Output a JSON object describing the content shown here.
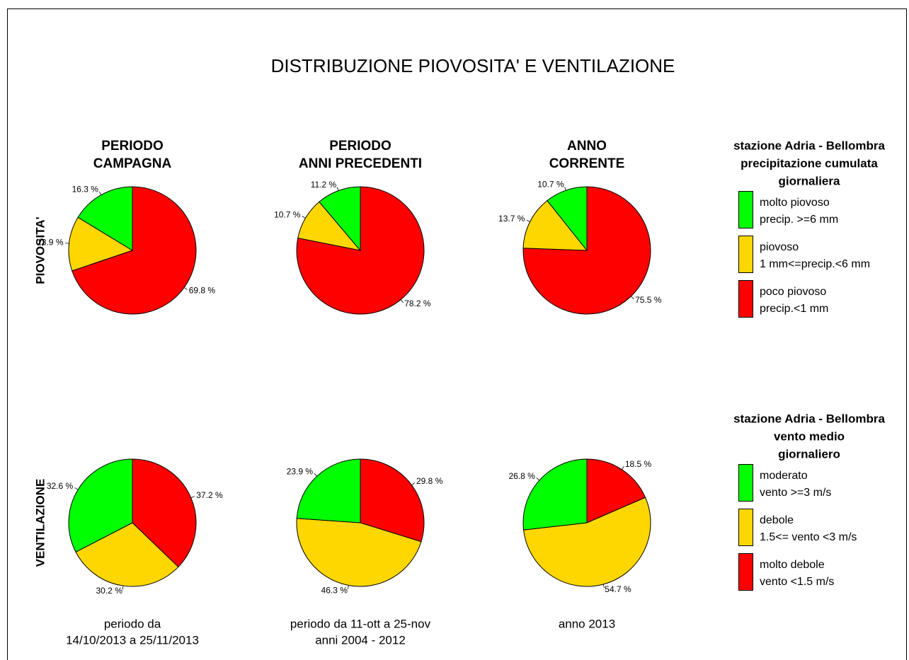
{
  "title": "DISTRIBUZIONE PIOVOSITA' E VENTILAZIONE",
  "columns": [
    {
      "title": [
        "PERIODO",
        "CAMPAGNA"
      ],
      "footer": [
        "periodo da",
        "14/10/2013  a   25/11/2013"
      ]
    },
    {
      "title": [
        "PERIODO",
        "ANNI PRECEDENTI"
      ],
      "footer": [
        "periodo da  11-ott  a  25-nov",
        "anni 2004 - 2012"
      ]
    },
    {
      "title": [
        "ANNO",
        "CORRENTE"
      ],
      "footer": [
        "anno  2013"
      ]
    }
  ],
  "rows": [
    "PIOVOSITA'",
    "VENTILAZIONE"
  ],
  "legends": [
    {
      "title": [
        "stazione  Adria - Bellombra",
        "precipitazione cumulata",
        "giornaliera"
      ],
      "items": [
        {
          "label": [
            "molto piovoso",
            "precip. >=6 mm"
          ],
          "color": "#00ff00"
        },
        {
          "label": [
            "piovoso",
            "1 mm<=precip.<6 mm"
          ],
          "color": "#ffd700"
        },
        {
          "label": [
            "poco piovoso",
            "precip.<1 mm"
          ],
          "color": "#ff0000"
        }
      ]
    },
    {
      "title": [
        "stazione  Adria - Bellombra",
        "vento medio",
        "giornaliero"
      ],
      "items": [
        {
          "label": [
            "moderato",
            "vento >=3 m/s"
          ],
          "color": "#00ff00"
        },
        {
          "label": [
            "debole",
            "1.5<= vento <3 m/s"
          ],
          "color": "#ffd700"
        },
        {
          "label": [
            "molto debole",
            "vento <1.5 m/s"
          ],
          "color": "#ff0000"
        }
      ]
    }
  ],
  "chart_data": [
    {
      "type": "pie",
      "values": [
        69.8,
        13.9,
        16.3
      ],
      "value_labels": [
        "69.8 %",
        "13.9 %",
        "16.3 %"
      ],
      "colors": [
        "#ff0000",
        "#ffd700",
        "#00ff00"
      ]
    },
    {
      "type": "pie",
      "values": [
        78.2,
        10.7,
        11.2
      ],
      "value_labels": [
        "78.2 %",
        "10.7 %",
        "11.2 %"
      ],
      "colors": [
        "#ff0000",
        "#ffd700",
        "#00ff00"
      ]
    },
    {
      "type": "pie",
      "values": [
        75.5,
        13.7,
        10.7
      ],
      "value_labels": [
        "75.5 %",
        "13.7 %",
        "10.7 %"
      ],
      "colors": [
        "#ff0000",
        "#ffd700",
        "#00ff00"
      ]
    },
    {
      "type": "pie",
      "values": [
        37.2,
        30.2,
        32.6
      ],
      "value_labels": [
        "37.2 %",
        "30.2 %",
        "32.6 %"
      ],
      "colors": [
        "#ff0000",
        "#ffd700",
        "#00ff00"
      ]
    },
    {
      "type": "pie",
      "values": [
        29.8,
        46.3,
        23.9
      ],
      "value_labels": [
        "29.8 %",
        "46.3 %",
        "23.9 %"
      ],
      "colors": [
        "#ff0000",
        "#ffd700",
        "#00ff00"
      ]
    },
    {
      "type": "pie",
      "values": [
        18.5,
        54.7,
        26.8
      ],
      "value_labels": [
        "18.5 %",
        "54.7 %",
        "26.8 %"
      ],
      "colors": [
        "#ff0000",
        "#ffd700",
        "#00ff00"
      ]
    }
  ]
}
